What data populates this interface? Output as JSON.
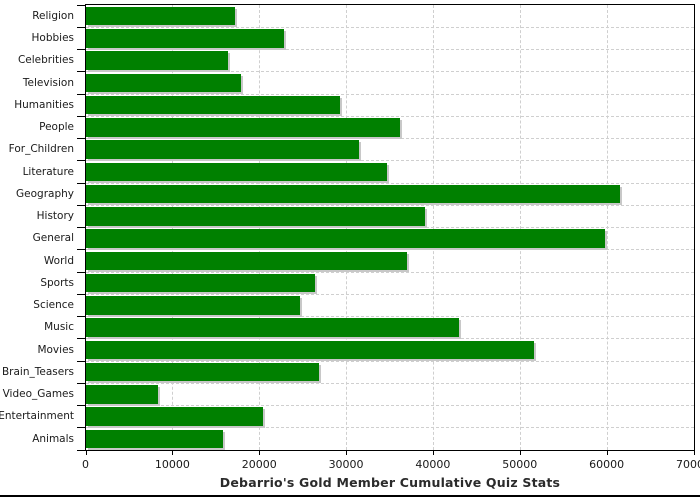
{
  "chart_data": {
    "type": "bar",
    "orientation": "horizontal",
    "title": "Debarrio's Gold Member Cumulative Quiz Stats",
    "categories": [
      "Religion",
      "Hobbies",
      "Celebrities",
      "Television",
      "Humanities",
      "People",
      "For_Children",
      "Literature",
      "Geography",
      "History",
      "General",
      "World",
      "Sports",
      "Science",
      "Music",
      "Movies",
      "Brain_Teasers",
      "Video_Games",
      "Entertainment",
      "Animals"
    ],
    "values": [
      17200,
      22800,
      16400,
      17800,
      29200,
      36100,
      31400,
      34700,
      61500,
      39000,
      59700,
      37000,
      26400,
      24600,
      43000,
      51600,
      26800,
      8300,
      20400,
      15800
    ],
    "xlabel": "",
    "ylabel": "",
    "xlim": [
      0,
      70000
    ],
    "xticks": [
      0,
      10000,
      20000,
      30000,
      40000,
      50000,
      60000,
      70000
    ],
    "grid": "dashed both axes",
    "legend": "none",
    "bar_color": "#008000",
    "bar_shadow_color": "#c8c8c8",
    "grid_color": "#cfcfcf",
    "axis_color": "#000000",
    "text_color": "#1a1a1a"
  }
}
